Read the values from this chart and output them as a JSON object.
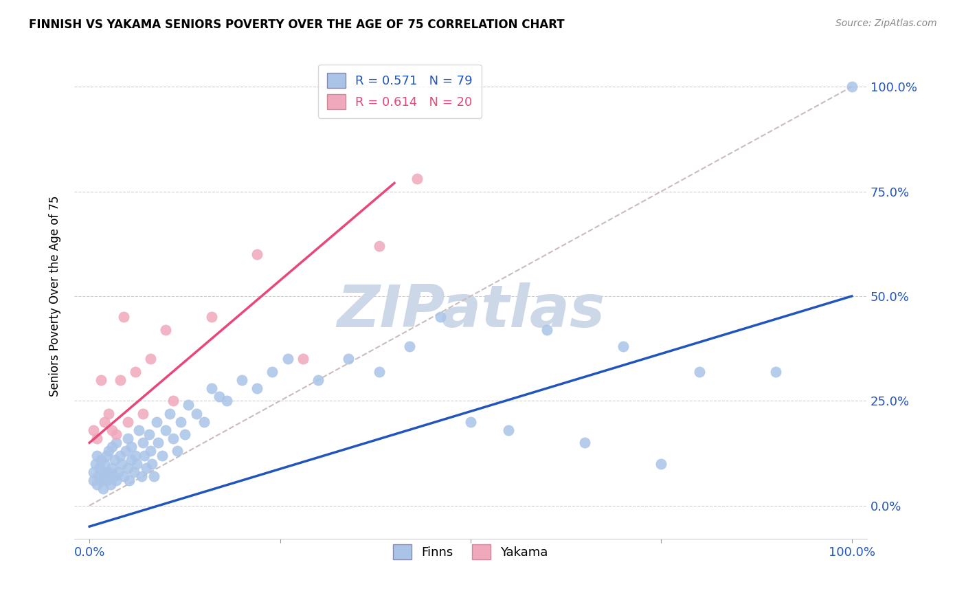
{
  "title": "FINNISH VS YAKAMA SENIORS POVERTY OVER THE AGE OF 75 CORRELATION CHART",
  "source": "Source: ZipAtlas.com",
  "ylabel": "Seniors Poverty Over the Age of 75",
  "xlabel": "",
  "xlim": [
    -0.02,
    1.02
  ],
  "ylim": [
    -0.08,
    1.08
  ],
  "xticks": [
    0.0,
    1.0
  ],
  "xtick_labels_pos": [
    0.0,
    1.0
  ],
  "xtick_labels": [
    "0.0%",
    "100.0%"
  ],
  "yticks": [
    0.0,
    0.25,
    0.5,
    0.75,
    1.0
  ],
  "right_ytick_labels": [
    "0.0%",
    "25.0%",
    "50.0%",
    "75.0%",
    "100.0%"
  ],
  "finns_color": "#aac4e8",
  "yakama_color": "#f0a8bc",
  "finns_line_color": "#2255bb",
  "yakama_line_color": "#e84878",
  "diagonal_color": "#ccbbbb",
  "R_finns": 0.571,
  "N_finns": 79,
  "R_yakama": 0.614,
  "N_yakama": 20,
  "watermark": "ZIPatlas",
  "watermark_color": "#ccd8e8",
  "finns_slope": 0.55,
  "finns_intercept": -0.05,
  "yakama_slope": 1.55,
  "yakama_intercept": 0.15,
  "finns_x": [
    0.005,
    0.005,
    0.008,
    0.01,
    0.01,
    0.012,
    0.013,
    0.015,
    0.015,
    0.018,
    0.018,
    0.02,
    0.02,
    0.022,
    0.022,
    0.025,
    0.025,
    0.028,
    0.03,
    0.03,
    0.032,
    0.033,
    0.035,
    0.035,
    0.038,
    0.04,
    0.042,
    0.045,
    0.048,
    0.05,
    0.05,
    0.052,
    0.055,
    0.055,
    0.058,
    0.06,
    0.062,
    0.065,
    0.068,
    0.07,
    0.072,
    0.075,
    0.078,
    0.08,
    0.082,
    0.085,
    0.088,
    0.09,
    0.095,
    0.1,
    0.105,
    0.11,
    0.115,
    0.12,
    0.125,
    0.13,
    0.14,
    0.15,
    0.16,
    0.17,
    0.18,
    0.2,
    0.22,
    0.24,
    0.26,
    0.3,
    0.34,
    0.38,
    0.42,
    0.46,
    0.5,
    0.55,
    0.6,
    0.65,
    0.7,
    0.75,
    0.8,
    0.9,
    1.0
  ],
  "finns_y": [
    0.08,
    0.06,
    0.1,
    0.05,
    0.12,
    0.07,
    0.09,
    0.06,
    0.11,
    0.08,
    0.04,
    0.1,
    0.07,
    0.12,
    0.06,
    0.08,
    0.13,
    0.05,
    0.09,
    0.14,
    0.07,
    0.11,
    0.06,
    0.15,
    0.08,
    0.12,
    0.1,
    0.07,
    0.13,
    0.09,
    0.16,
    0.06,
    0.11,
    0.14,
    0.08,
    0.12,
    0.1,
    0.18,
    0.07,
    0.15,
    0.12,
    0.09,
    0.17,
    0.13,
    0.1,
    0.07,
    0.2,
    0.15,
    0.12,
    0.18,
    0.22,
    0.16,
    0.13,
    0.2,
    0.17,
    0.24,
    0.22,
    0.2,
    0.28,
    0.26,
    0.25,
    0.3,
    0.28,
    0.32,
    0.35,
    0.3,
    0.35,
    0.32,
    0.38,
    0.45,
    0.2,
    0.18,
    0.42,
    0.15,
    0.38,
    0.1,
    0.32,
    0.32,
    1.0
  ],
  "yakama_x": [
    0.005,
    0.01,
    0.015,
    0.02,
    0.025,
    0.03,
    0.035,
    0.04,
    0.045,
    0.05,
    0.06,
    0.07,
    0.08,
    0.1,
    0.11,
    0.16,
    0.22,
    0.28,
    0.38,
    0.43
  ],
  "yakama_y": [
    0.18,
    0.16,
    0.3,
    0.2,
    0.22,
    0.18,
    0.17,
    0.3,
    0.45,
    0.2,
    0.32,
    0.22,
    0.35,
    0.42,
    0.25,
    0.45,
    0.6,
    0.35,
    0.62,
    0.78
  ]
}
